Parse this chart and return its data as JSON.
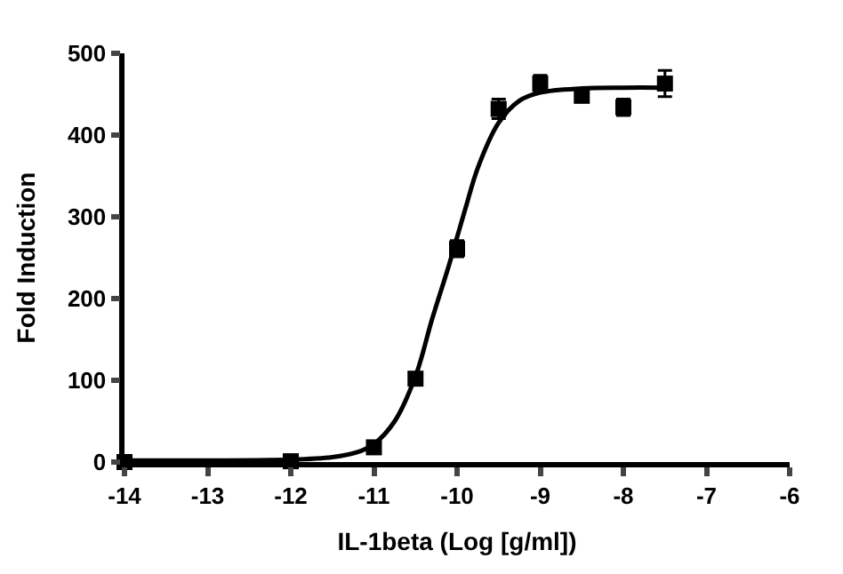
{
  "chart_data": {
    "type": "scatter",
    "xlabel": "IL-1beta (Log [g/ml])",
    "ylabel": "Fold Induction",
    "xlim": [
      -14,
      -6
    ],
    "xticks": [
      -14,
      -13,
      -12,
      -11,
      -10,
      -9,
      -8,
      -7,
      -6
    ],
    "ylim": [
      0,
      500
    ],
    "yticks": [
      0,
      100,
      200,
      300,
      400,
      500
    ],
    "legend": false,
    "series": [
      {
        "marker": "square",
        "color": "#000000",
        "x": [
          -14,
          -12,
          -11,
          -10.5,
          -10,
          -9.5,
          -9,
          -8.5,
          -8,
          -7.5
        ],
        "values": [
          0,
          1,
          18,
          102,
          261,
          432,
          463,
          448,
          434,
          463
        ],
        "errors": [
          null,
          null,
          null,
          null,
          10,
          12,
          10,
          null,
          10,
          16
        ]
      },
      {
        "type": "line",
        "marker": "none",
        "line_style": "solid",
        "color": "#000000",
        "x": [
          -14,
          -12,
          -11.5,
          -11.2,
          -11,
          -10.75,
          -10.5,
          -10.3,
          -10.1,
          -10,
          -9.9,
          -9.75,
          -9.5,
          -9.25,
          -9,
          -8.5,
          -8,
          -7.5
        ],
        "values": [
          2,
          3,
          6,
          12,
          22,
          50,
          105,
          175,
          240,
          275,
          310,
          360,
          415,
          442,
          452,
          457,
          458,
          458
        ]
      }
    ]
  }
}
